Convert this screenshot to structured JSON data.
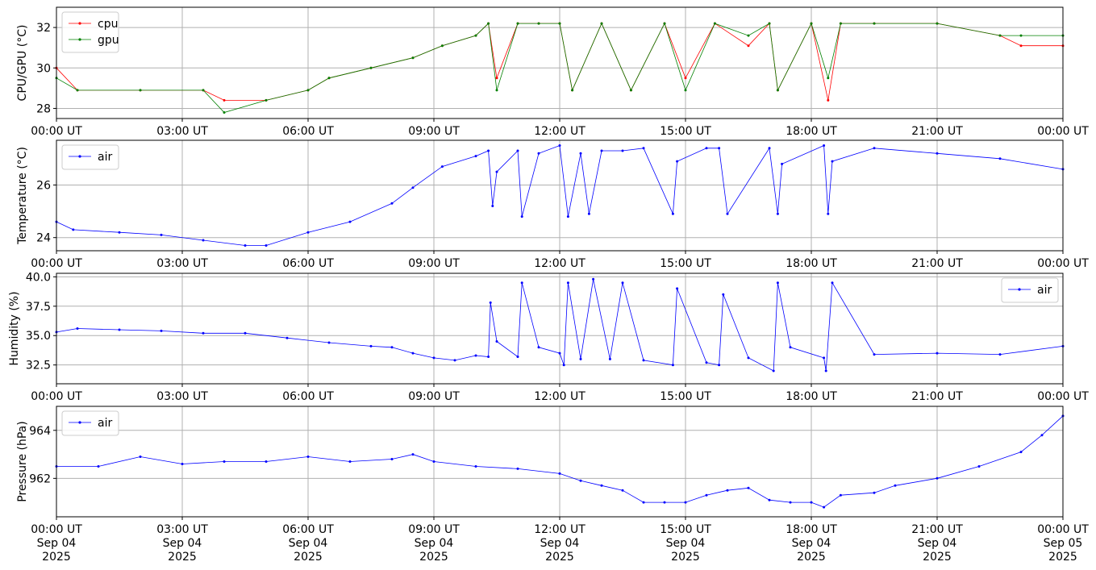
{
  "x_ticks": [
    "00:00 UT",
    "03:00 UT",
    "06:00 UT",
    "09:00 UT",
    "12:00 UT",
    "15:00 UT",
    "18:00 UT",
    "21:00 UT",
    "00:00 UT"
  ],
  "x_ticks_bottom": [
    [
      "00:00 UT",
      "Sep 04",
      "2025"
    ],
    [
      "03:00 UT",
      "Sep 04",
      "2025"
    ],
    [
      "06:00 UT",
      "Sep 04",
      "2025"
    ],
    [
      "09:00 UT",
      "Sep 04",
      "2025"
    ],
    [
      "12:00 UT",
      "Sep 04",
      "2025"
    ],
    [
      "15:00 UT",
      "Sep 04",
      "2025"
    ],
    [
      "18:00 UT",
      "Sep 04",
      "2025"
    ],
    [
      "21:00 UT",
      "Sep 04",
      "2025"
    ],
    [
      "00:00 UT",
      "Sep 05",
      "2025"
    ]
  ],
  "chart_data": [
    {
      "type": "line",
      "ylabel": "CPU/GPU (°C)",
      "xlim": [
        "2025-09-04 00:00",
        "2025-09-05 00:00"
      ],
      "ylim": [
        27.5,
        33.0
      ],
      "y_ticks": [
        28,
        30,
        32
      ],
      "grid": true,
      "legend": "top-left",
      "x_hours": [
        0,
        0.5,
        2.0,
        3.5,
        4.0,
        5.0,
        6.0,
        6.5,
        7.5,
        8.5,
        9.2,
        10.0,
        10.3,
        10.5,
        11.0,
        11.5,
        12.0,
        12.3,
        13.0,
        13.7,
        14.5,
        15.0,
        15.7,
        16.5,
        17.0,
        17.2,
        18.0,
        18.4,
        18.7,
        19.5,
        21.0,
        22.5,
        23.0,
        24.0
      ],
      "series": [
        {
          "name": "cpu",
          "color": "#ff0000",
          "values": [
            30.0,
            28.9,
            28.9,
            28.9,
            28.4,
            28.4,
            28.9,
            29.5,
            30.0,
            30.5,
            31.1,
            31.6,
            32.2,
            29.5,
            32.2,
            32.2,
            32.2,
            28.9,
            32.2,
            28.9,
            32.2,
            29.5,
            32.2,
            31.1,
            32.2,
            28.9,
            32.2,
            28.4,
            32.2,
            32.2,
            32.2,
            31.6,
            31.1,
            31.1
          ]
        },
        {
          "name": "gpu",
          "color": "#008000",
          "values": [
            29.5,
            28.9,
            28.9,
            28.9,
            27.8,
            28.4,
            28.9,
            29.5,
            30.0,
            30.5,
            31.1,
            31.6,
            32.2,
            28.9,
            32.2,
            32.2,
            32.2,
            28.9,
            32.2,
            28.9,
            32.2,
            28.9,
            32.2,
            31.6,
            32.2,
            28.9,
            32.2,
            29.5,
            32.2,
            32.2,
            32.2,
            31.6,
            31.6,
            31.6
          ]
        }
      ]
    },
    {
      "type": "line",
      "ylabel": "Temperature (°C)",
      "xlim": [
        "2025-09-04 00:00",
        "2025-09-05 00:00"
      ],
      "ylim": [
        23.5,
        27.7
      ],
      "y_ticks": [
        24,
        26
      ],
      "grid": true,
      "legend": "top-left",
      "x_hours": [
        0,
        0.4,
        1.5,
        2.5,
        3.5,
        4.5,
        5.0,
        6.0,
        7.0,
        8.0,
        8.5,
        9.2,
        10.0,
        10.3,
        10.4,
        10.5,
        11.0,
        11.1,
        11.5,
        12.0,
        12.2,
        12.5,
        12.7,
        13.0,
        13.5,
        14.0,
        14.7,
        14.8,
        15.5,
        15.8,
        16.0,
        17.0,
        17.2,
        17.3,
        18.3,
        18.4,
        18.5,
        19.5,
        21.0,
        22.5,
        24.0
      ],
      "series": [
        {
          "name": "air",
          "color": "#0000ff",
          "values": [
            24.6,
            24.3,
            24.2,
            24.1,
            23.9,
            23.7,
            23.7,
            24.2,
            24.6,
            25.3,
            25.9,
            26.7,
            27.1,
            27.3,
            25.2,
            26.5,
            27.3,
            24.8,
            27.2,
            27.5,
            24.8,
            27.2,
            24.9,
            27.3,
            27.3,
            27.4,
            24.9,
            26.9,
            27.4,
            27.4,
            24.9,
            27.4,
            24.9,
            26.8,
            27.5,
            24.9,
            26.9,
            27.4,
            27.2,
            27.0,
            26.6
          ]
        }
      ]
    },
    {
      "type": "line",
      "ylabel": "Humidity (%)",
      "xlim": [
        "2025-09-04 00:00",
        "2025-09-05 00:00"
      ],
      "ylim": [
        30.9,
        40.3
      ],
      "y_ticks": [
        32.5,
        35.0,
        37.5,
        40.0
      ],
      "y_tick_labels": [
        "32.5",
        "35.0",
        "37.5",
        "40.0"
      ],
      "grid": true,
      "legend": "top-right",
      "x_hours": [
        0,
        0.5,
        1.5,
        2.5,
        3.5,
        4.5,
        5.5,
        6.5,
        7.5,
        8.0,
        8.5,
        9.0,
        9.5,
        10.0,
        10.3,
        10.35,
        10.5,
        11.0,
        11.1,
        11.5,
        12.0,
        12.1,
        12.2,
        12.5,
        12.8,
        13.2,
        13.5,
        14.0,
        14.7,
        14.8,
        15.5,
        15.8,
        15.9,
        16.5,
        17.1,
        17.2,
        17.5,
        18.3,
        18.35,
        18.5,
        19.5,
        21.0,
        22.5,
        24.0
      ],
      "series": [
        {
          "name": "air",
          "color": "#0000ff",
          "values": [
            35.3,
            35.6,
            35.5,
            35.4,
            35.2,
            35.2,
            34.8,
            34.4,
            34.1,
            34.0,
            33.5,
            33.1,
            32.9,
            33.3,
            33.2,
            37.8,
            34.5,
            33.2,
            39.5,
            34.0,
            33.5,
            32.5,
            39.5,
            33.0,
            39.8,
            33.0,
            39.5,
            32.9,
            32.5,
            39.0,
            32.7,
            32.5,
            38.5,
            33.1,
            32.0,
            39.5,
            34.0,
            33.1,
            32.0,
            39.5,
            33.4,
            33.5,
            33.4,
            34.1
          ]
        }
      ]
    },
    {
      "type": "line",
      "ylabel": "Pressure (hPa)",
      "xlim": [
        "2025-09-04 00:00",
        "2025-09-05 00:00"
      ],
      "ylim": [
        960.4,
        965.0
      ],
      "y_ticks": [
        962,
        964
      ],
      "grid": true,
      "legend": "top-left",
      "x_hours": [
        0,
        1.0,
        2.0,
        3.0,
        4.0,
        5.0,
        6.0,
        7.0,
        8.0,
        8.5,
        9.0,
        10.0,
        11.0,
        12.0,
        12.5,
        13.0,
        13.5,
        14.0,
        14.5,
        15.0,
        15.5,
        16.0,
        16.5,
        17.0,
        17.5,
        18.0,
        18.3,
        18.7,
        19.5,
        20.0,
        21.0,
        22.0,
        23.0,
        23.5,
        24.0
      ],
      "series": [
        {
          "name": "air",
          "color": "#0000ff",
          "values": [
            962.5,
            962.5,
            962.9,
            962.6,
            962.7,
            962.7,
            962.9,
            962.7,
            962.8,
            963.0,
            962.7,
            962.5,
            962.4,
            962.2,
            961.9,
            961.7,
            961.5,
            961.0,
            961.0,
            961.0,
            961.3,
            961.5,
            961.6,
            961.1,
            961.0,
            961.0,
            960.8,
            961.3,
            961.4,
            961.7,
            962.0,
            962.5,
            963.1,
            963.8,
            964.6
          ]
        }
      ]
    }
  ]
}
